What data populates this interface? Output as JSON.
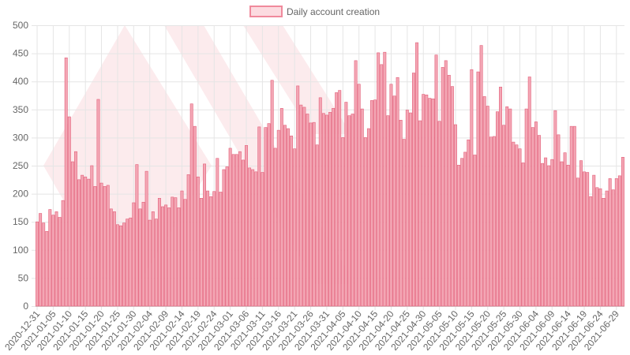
{
  "colors": {
    "bar_fill": "#f3a6b4",
    "bar_stroke": "#e3607a",
    "legend_fill": "#fcdbe0",
    "legend_stroke": "#f08a9c",
    "grid": "#e5e5e5",
    "watermark": "#fbe4e7",
    "text": "#666666"
  },
  "chart_data": {
    "type": "bar",
    "title": "",
    "xlabel": "",
    "ylabel": "",
    "legend": {
      "position": "top-center"
    },
    "grid": true,
    "ylim": [
      0,
      500
    ],
    "y_ticks": [
      0,
      50,
      100,
      150,
      200,
      250,
      300,
      350,
      400,
      450,
      500
    ],
    "x_start": "2020-12-31",
    "x_tick_labels": [
      "2020-12-31",
      "2021-01-05",
      "2021-01-10",
      "2021-01-15",
      "2021-01-20",
      "2021-01-25",
      "2021-01-30",
      "2021-02-04",
      "2021-02-09",
      "2021-02-14",
      "2021-02-19",
      "2021-02-24",
      "2021-03-01",
      "2021-03-06",
      "2021-03-11",
      "2021-03-16",
      "2021-03-21",
      "2021-03-26",
      "2021-03-31",
      "2021-04-05",
      "2021-04-10",
      "2021-04-15",
      "2021-04-20",
      "2021-04-25",
      "2021-04-30",
      "2021-05-05",
      "2021-05-10",
      "2021-05-15",
      "2021-05-20",
      "2021-05-25",
      "2021-05-30",
      "2021-06-04",
      "2021-06-09",
      "2021-06-14",
      "2021-06-19",
      "2021-06-24",
      "2021-06-29"
    ],
    "series": [
      {
        "name": "Daily account creation",
        "values": [
          150,
          165,
          148,
          133,
          172,
          162,
          168,
          158,
          188,
          442,
          337,
          257,
          275,
          225,
          233,
          230,
          226,
          250,
          213,
          368,
          219,
          213,
          215,
          173,
          168,
          145,
          143,
          148,
          155,
          157,
          184,
          252,
          173,
          185,
          240,
          153,
          168,
          155,
          192,
          177,
          180,
          175,
          194,
          193,
          175,
          205,
          190,
          234,
          360,
          320,
          230,
          192,
          253,
          205,
          195,
          204,
          263,
          203,
          243,
          248,
          281,
          270,
          270,
          275,
          260,
          286,
          246,
          243,
          239,
          319,
          238,
          318,
          325,
          402,
          281,
          313,
          352,
          322,
          316,
          303,
          280,
          392,
          358,
          354,
          342,
          326,
          327,
          287,
          371,
          343,
          340,
          345,
          352,
          380,
          384,
          300,
          363,
          339,
          342,
          437,
          395,
          351,
          300,
          316,
          366,
          367,
          451,
          430,
          452,
          339,
          395,
          374,
          407,
          331,
          297,
          349,
          344,
          415,
          469,
          330,
          377,
          376,
          370,
          369,
          447,
          329,
          425,
          437,
          411,
          391,
          323,
          251,
          263,
          274,
          296,
          421,
          269,
          417,
          464,
          373,
          356,
          301,
          302,
          346,
          390,
          322,
          355,
          351,
          292,
          287,
          280,
          255,
          351,
          408,
          318,
          328,
          304,
          254,
          264,
          250,
          261,
          348,
          305,
          257,
          273,
          251,
          320,
          320,
          228,
          259,
          239,
          238,
          195,
          233,
          211,
          209,
          192,
          205,
          227,
          207,
          227,
          232,
          265
        ]
      }
    ]
  }
}
